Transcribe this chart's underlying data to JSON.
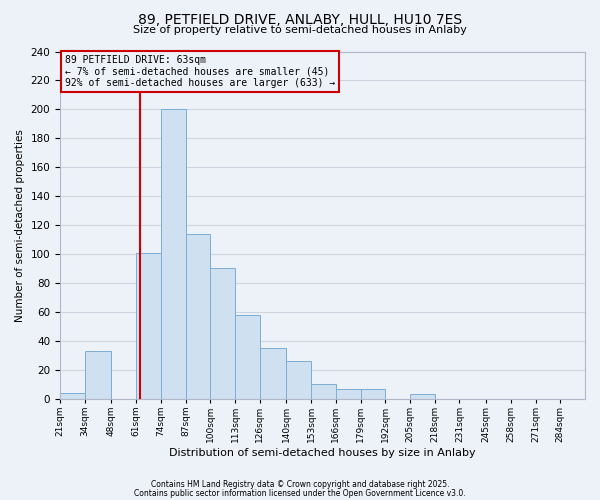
{
  "title": "89, PETFIELD DRIVE, ANLABY, HULL, HU10 7ES",
  "subtitle": "Size of property relative to semi-detached houses in Anlaby",
  "xlabel": "Distribution of semi-detached houses by size in Anlaby",
  "ylabel": "Number of semi-detached properties",
  "bar_edges": [
    21,
    34,
    48,
    61,
    74,
    87,
    100,
    113,
    126,
    140,
    153,
    166,
    179,
    192,
    205,
    218,
    231,
    245,
    258,
    271,
    284
  ],
  "bar_heights": [
    4,
    33,
    0,
    101,
    200,
    114,
    90,
    58,
    35,
    26,
    10,
    7,
    7,
    0,
    3,
    0,
    0,
    0,
    0,
    0
  ],
  "bar_color": "#cfe0f0",
  "bar_edgecolor": "#7aaed6",
  "grid_color": "#cdd5e0",
  "background_color": "#edf1f8",
  "annotation_box_edgecolor": "#cc0000",
  "vline_color": "#cc0000",
  "vline_x": 63,
  "annotation_title": "89 PETFIELD DRIVE: 63sqm",
  "annotation_line1": "← 7% of semi-detached houses are smaller (45)",
  "annotation_line2": "92% of semi-detached houses are larger (633) →",
  "tick_labels": [
    "21sqm",
    "34sqm",
    "48sqm",
    "61sqm",
    "74sqm",
    "87sqm",
    "100sqm",
    "113sqm",
    "126sqm",
    "140sqm",
    "153sqm",
    "166sqm",
    "179sqm",
    "192sqm",
    "205sqm",
    "218sqm",
    "231sqm",
    "245sqm",
    "258sqm",
    "271sqm",
    "284sqm"
  ],
  "ylim": [
    0,
    240
  ],
  "yticks": [
    0,
    20,
    40,
    60,
    80,
    100,
    120,
    140,
    160,
    180,
    200,
    220,
    240
  ],
  "footer1": "Contains HM Land Registry data © Crown copyright and database right 2025.",
  "footer2": "Contains public sector information licensed under the Open Government Licence v3.0."
}
